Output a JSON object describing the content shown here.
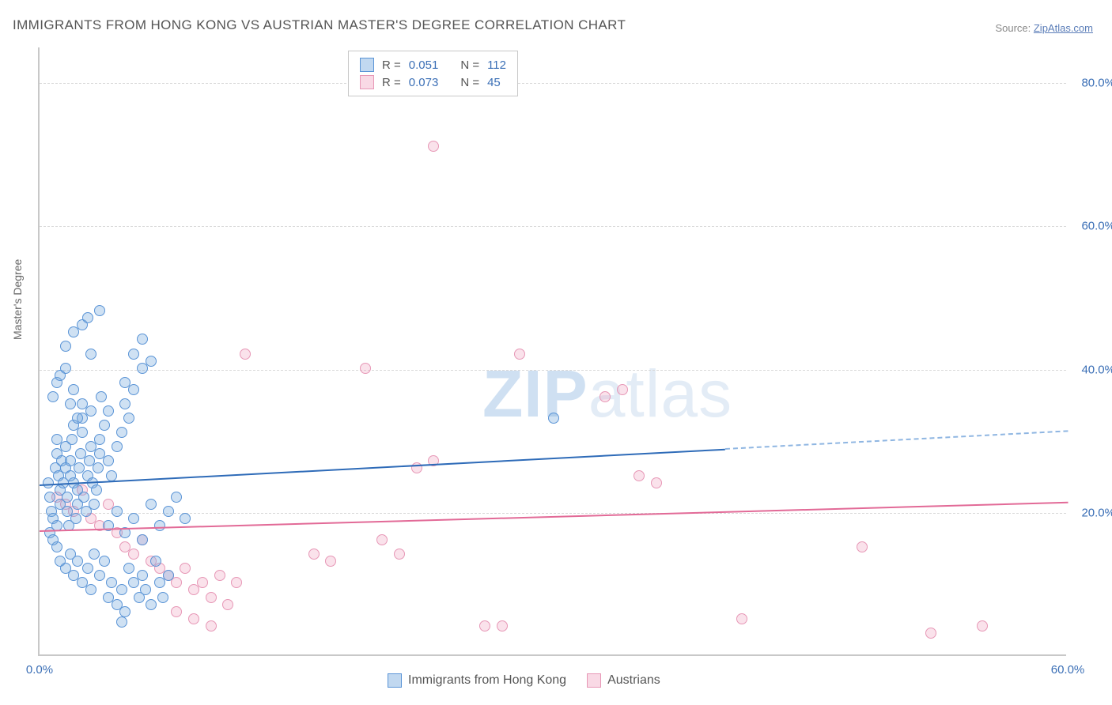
{
  "title": "IMMIGRANTS FROM HONG KONG VS AUSTRIAN MASTER'S DEGREE CORRELATION CHART",
  "source": {
    "label": "Source: ",
    "link_text": "ZipAtlas.com"
  },
  "watermark": {
    "zip": "ZIP",
    "rest": "atlas"
  },
  "y_axis_title": "Master's Degree",
  "chart": {
    "type": "scatter",
    "xlim": [
      0,
      60
    ],
    "ylim": [
      0,
      85
    ],
    "x_ticks": [
      0.0,
      60.0
    ],
    "y_ticks": [
      20.0,
      40.0,
      60.0,
      80.0
    ],
    "x_tick_labels": [
      "0.0%",
      "60.0%"
    ],
    "y_tick_labels": [
      "20.0%",
      "40.0%",
      "60.0%",
      "80.0%"
    ],
    "grid_color": "#d8d8d8",
    "axis_color": "#c8c8c8",
    "background_color": "#ffffff",
    "tick_label_color": "#3b6fb6",
    "tick_fontsize": 15,
    "title_fontsize": 17,
    "marker_size": 14,
    "marker_style": "circle"
  },
  "series_blue": {
    "name": "Immigrants from Hong Kong",
    "R_label": "R =",
    "R": "0.051",
    "N_label": "N =",
    "N": "112",
    "fill": "rgba(118,168,222,0.35)",
    "stroke": "#5a94d6",
    "trend_color": "#2e6bb8",
    "trend_dash_color": "#8fb6e2",
    "trend_line_width": 2.5,
    "trend": {
      "y_at_x0": 24.0,
      "y_at_x40": 29.0,
      "y_at_x60": 31.5,
      "solid_end_x": 40
    },
    "points": [
      [
        0.5,
        24
      ],
      [
        0.6,
        22
      ],
      [
        0.7,
        20
      ],
      [
        0.8,
        19
      ],
      [
        0.9,
        26
      ],
      [
        1.0,
        28
      ],
      [
        1.0,
        30
      ],
      [
        1.1,
        25
      ],
      [
        1.2,
        23
      ],
      [
        1.2,
        21
      ],
      [
        1.3,
        27
      ],
      [
        1.4,
        24
      ],
      [
        1.5,
        26
      ],
      [
        1.5,
        29
      ],
      [
        1.6,
        22
      ],
      [
        1.6,
        20
      ],
      [
        1.7,
        18
      ],
      [
        1.8,
        25
      ],
      [
        1.8,
        27
      ],
      [
        1.9,
        30
      ],
      [
        2.0,
        24
      ],
      [
        2.0,
        32
      ],
      [
        2.1,
        19
      ],
      [
        2.2,
        21
      ],
      [
        2.2,
        23
      ],
      [
        2.3,
        26
      ],
      [
        2.4,
        28
      ],
      [
        2.5,
        31
      ],
      [
        2.5,
        33
      ],
      [
        2.6,
        22
      ],
      [
        2.7,
        20
      ],
      [
        2.8,
        25
      ],
      [
        2.9,
        27
      ],
      [
        3.0,
        29
      ],
      [
        3.0,
        34
      ],
      [
        3.1,
        24
      ],
      [
        3.2,
        21
      ],
      [
        3.3,
        23
      ],
      [
        3.4,
        26
      ],
      [
        3.5,
        28
      ],
      [
        3.5,
        30
      ],
      [
        3.6,
        36
      ],
      [
        3.8,
        32
      ],
      [
        4.0,
        34
      ],
      [
        4.0,
        27
      ],
      [
        4.2,
        25
      ],
      [
        4.5,
        29
      ],
      [
        4.8,
        31
      ],
      [
        5.0,
        35
      ],
      [
        5.0,
        38
      ],
      [
        5.2,
        33
      ],
      [
        5.5,
        37
      ],
      [
        5.5,
        42
      ],
      [
        6.0,
        40
      ],
      [
        6.0,
        44
      ],
      [
        6.5,
        41
      ],
      [
        1.0,
        15
      ],
      [
        1.2,
        13
      ],
      [
        1.5,
        12
      ],
      [
        1.8,
        14
      ],
      [
        2.0,
        11
      ],
      [
        2.2,
        13
      ],
      [
        2.5,
        10
      ],
      [
        2.8,
        12
      ],
      [
        3.0,
        9
      ],
      [
        3.2,
        14
      ],
      [
        3.5,
        11
      ],
      [
        3.8,
        13
      ],
      [
        4.0,
        8
      ],
      [
        4.2,
        10
      ],
      [
        4.5,
        7
      ],
      [
        4.8,
        9
      ],
      [
        5.0,
        6
      ],
      [
        5.2,
        12
      ],
      [
        5.5,
        10
      ],
      [
        5.8,
        8
      ],
      [
        6.0,
        11
      ],
      [
        6.2,
        9
      ],
      [
        6.5,
        7
      ],
      [
        6.8,
        13
      ],
      [
        7.0,
        10
      ],
      [
        7.2,
        8
      ],
      [
        7.5,
        11
      ],
      [
        3.5,
        48
      ],
      [
        2.0,
        45
      ],
      [
        3.0,
        42
      ],
      [
        1.5,
        43
      ],
      [
        2.5,
        46
      ],
      [
        4.0,
        18
      ],
      [
        4.5,
        20
      ],
      [
        5.0,
        17
      ],
      [
        5.5,
        19
      ],
      [
        6.0,
        16
      ],
      [
        6.5,
        21
      ],
      [
        7.0,
        18
      ],
      [
        7.5,
        20
      ],
      [
        8.0,
        22
      ],
      [
        8.5,
        19
      ],
      [
        2.8,
        47
      ],
      [
        1.0,
        38
      ],
      [
        1.5,
        40
      ],
      [
        0.8,
        36
      ],
      [
        1.2,
        39
      ],
      [
        2.0,
        37
      ],
      [
        1.8,
        35
      ],
      [
        2.2,
        33
      ],
      [
        2.5,
        35
      ],
      [
        30.0,
        33
      ],
      [
        0.6,
        17
      ],
      [
        0.8,
        16
      ],
      [
        1.0,
        18
      ],
      [
        4.8,
        4.5
      ]
    ]
  },
  "series_pink": {
    "name": "Austrians",
    "R_label": "R =",
    "R": "0.073",
    "N_label": "N =",
    "N": "45",
    "fill": "rgba(239,160,190,0.30)",
    "stroke": "#e797b6",
    "trend_color": "#e26a97",
    "trend_line_width": 2.5,
    "trend": {
      "y_at_x0": 17.5,
      "y_at_x60": 21.5
    },
    "points": [
      [
        1.0,
        22
      ],
      [
        1.5,
        21
      ],
      [
        2.0,
        20
      ],
      [
        2.5,
        23
      ],
      [
        3.0,
        19
      ],
      [
        3.5,
        18
      ],
      [
        4.0,
        21
      ],
      [
        4.5,
        17
      ],
      [
        5.0,
        15
      ],
      [
        5.5,
        14
      ],
      [
        6.0,
        16
      ],
      [
        6.5,
        13
      ],
      [
        7.0,
        12
      ],
      [
        7.5,
        11
      ],
      [
        8.0,
        10
      ],
      [
        8.5,
        12
      ],
      [
        9.0,
        9
      ],
      [
        9.5,
        10
      ],
      [
        10.0,
        8
      ],
      [
        10.5,
        11
      ],
      [
        11.0,
        7
      ],
      [
        11.5,
        10
      ],
      [
        8.0,
        6
      ],
      [
        9.0,
        5
      ],
      [
        10.0,
        4
      ],
      [
        16.0,
        14
      ],
      [
        17.0,
        13
      ],
      [
        20.0,
        16
      ],
      [
        21.0,
        14
      ],
      [
        22.0,
        26
      ],
      [
        23.0,
        27
      ],
      [
        23.0,
        71
      ],
      [
        12.0,
        42
      ],
      [
        19.0,
        40
      ],
      [
        28.0,
        42
      ],
      [
        26.0,
        4
      ],
      [
        27.0,
        4
      ],
      [
        33.0,
        36
      ],
      [
        34.0,
        37
      ],
      [
        35.0,
        25
      ],
      [
        36.0,
        24
      ],
      [
        41.0,
        5
      ],
      [
        48.0,
        15
      ],
      [
        52.0,
        3
      ],
      [
        55.0,
        4
      ]
    ]
  },
  "legend_bottom": {
    "item1": "Immigrants from Hong Kong",
    "item2": "Austrians"
  }
}
